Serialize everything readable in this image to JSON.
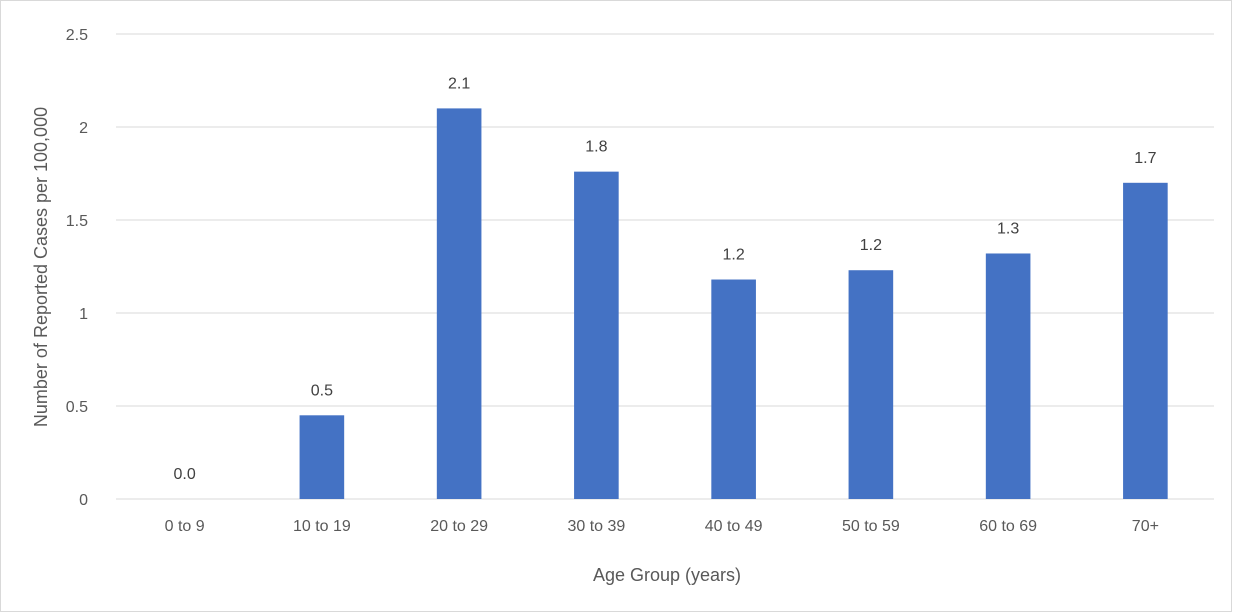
{
  "chart_data": {
    "type": "bar",
    "categories": [
      "0 to 9",
      "10 to 19",
      "20 to 29",
      "30 to 39",
      "40 to 49",
      "50 to 59",
      "60 to 69",
      "70+"
    ],
    "values": [
      0.0,
      0.45,
      2.1,
      1.76,
      1.18,
      1.23,
      1.32,
      1.7
    ],
    "data_labels": [
      "0.0",
      "0.5",
      "2.1",
      "1.8",
      "1.2",
      "1.2",
      "1.3",
      "1.7"
    ],
    "title": "",
    "xlabel": "Age Group (years)",
    "ylabel": "Number of Reported Cases per 100,000",
    "ylim": [
      0,
      2.5
    ],
    "yticks": [
      "0",
      "0.5",
      "1",
      "1.5",
      "2",
      "2.5"
    ],
    "grid": true,
    "legend": "none",
    "bar_color": "#4472C4",
    "gridline_color": "#d9d9d9"
  }
}
